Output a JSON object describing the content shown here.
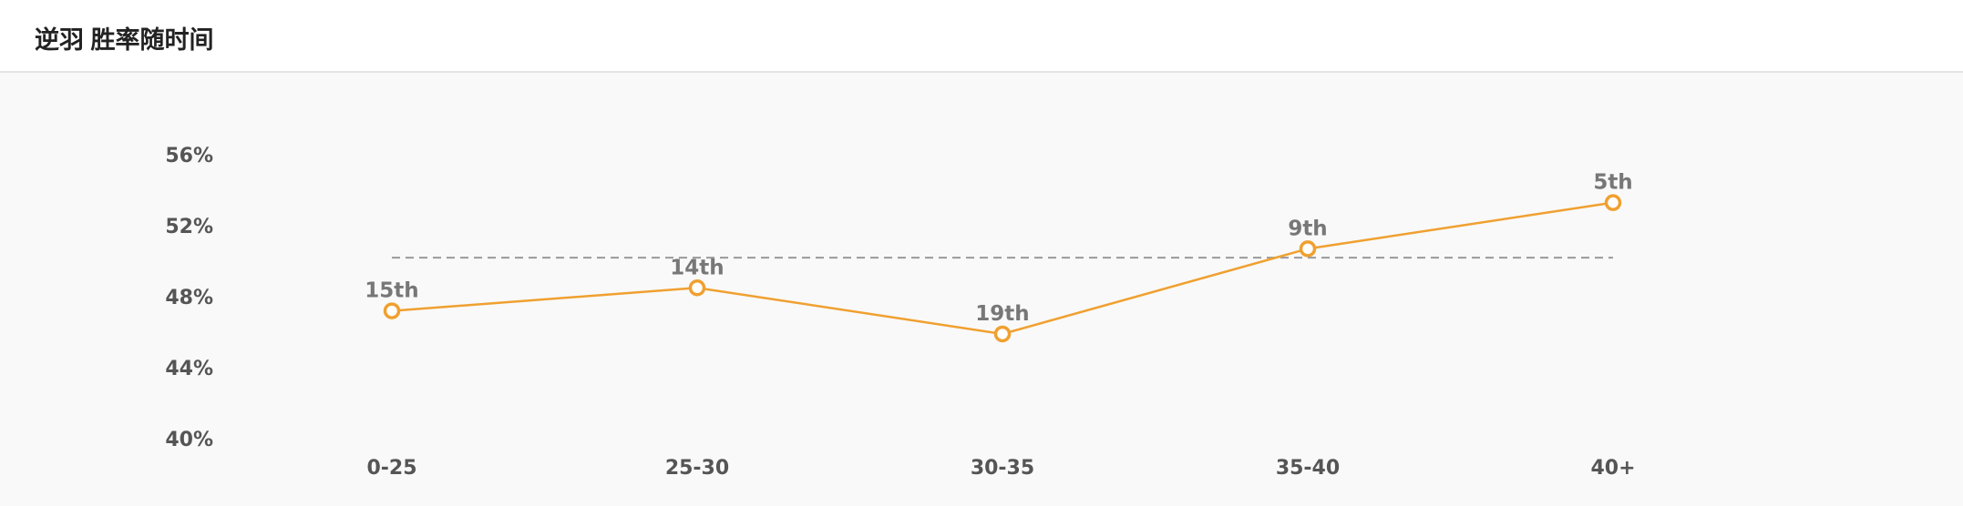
{
  "header": {
    "title": "逆羽 胜率随时间"
  },
  "chart_data": {
    "type": "line",
    "title": "逆羽 胜率随时间",
    "xlabel": "",
    "ylabel": "",
    "categories": [
      "0-25",
      "25-30",
      "30-35",
      "35-40",
      "40+"
    ],
    "series": [
      {
        "values": [
          47.2,
          48.5,
          45.9,
          50.7,
          53.3
        ],
        "labels": [
          "15th",
          "14th",
          "19th",
          "9th",
          "5th"
        ]
      }
    ],
    "reference_line": 50.2,
    "y_ticks": [
      "40%",
      "44%",
      "48%",
      "52%",
      "56%"
    ],
    "ylim": [
      40,
      56
    ],
    "grid": false,
    "legend": "none",
    "colors": {
      "line": "#f0a030",
      "marker_fill": "#ffffff",
      "reference": "#999999"
    }
  }
}
